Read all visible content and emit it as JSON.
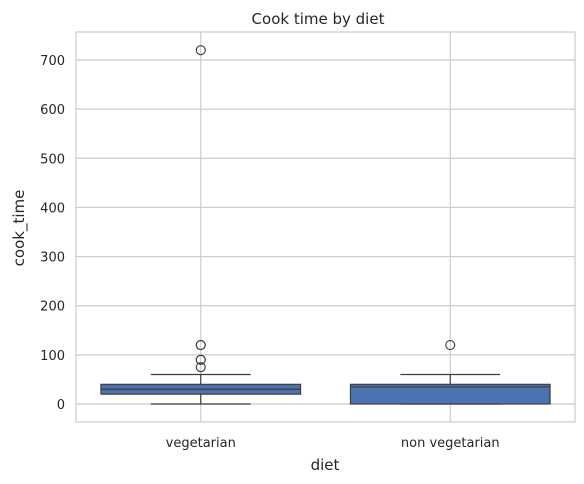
{
  "chart_data": {
    "type": "box",
    "title": "Cook time by diet",
    "xlabel": "diet",
    "ylabel": "cook_time",
    "ylim": [
      -35,
      760
    ],
    "yticks": [
      0,
      100,
      200,
      300,
      400,
      500,
      600,
      700
    ],
    "grid": true,
    "categories": [
      "vegetarian",
      "non vegetarian"
    ],
    "boxes": [
      {
        "category": "vegetarian",
        "whisker_low": 0,
        "q1": 20,
        "median": 30,
        "q3": 40,
        "whisker_high": 60,
        "outliers": [
          75,
          90,
          90,
          120,
          120,
          720
        ]
      },
      {
        "category": "non vegetarian",
        "whisker_low": 0,
        "q1": 0,
        "median": 35,
        "q3": 40,
        "whisker_high": 60,
        "outliers": [
          120
        ]
      }
    ],
    "colors": {
      "box_fill": "#4c72b0",
      "line": "#3d3d3d",
      "grid": "#cccccc",
      "spine": "#cccccc"
    }
  }
}
